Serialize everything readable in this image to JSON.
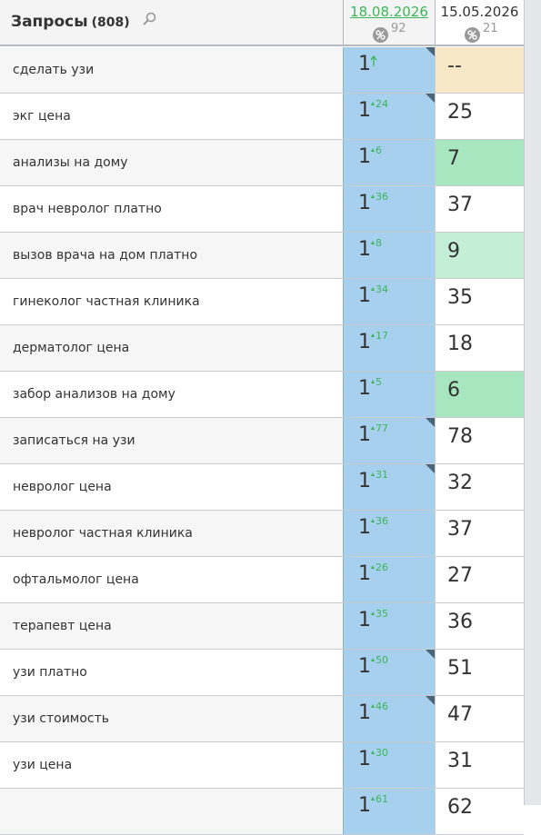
{
  "header": {
    "title": "Запросы",
    "count": "(808)",
    "columns": [
      {
        "date": "18.08.2026",
        "percent": "92",
        "link": true
      },
      {
        "date": "15.05.2026",
        "percent": "21",
        "link": false
      }
    ]
  },
  "table": {
    "rows": [
      {
        "query": "сделать узи",
        "pos1": "1",
        "new": true,
        "pos2": "--",
        "color": "#f7e9c8",
        "flag": true
      },
      {
        "query": "экг цена",
        "pos1": "1",
        "change": "24",
        "pos2": "25",
        "flag": true
      },
      {
        "query": "анализы на дому",
        "pos1": "1",
        "change": "6",
        "pos2": "7",
        "color": "#a8e6c0"
      },
      {
        "query": "врач невролог платно",
        "pos1": "1",
        "change": "36",
        "pos2": "37"
      },
      {
        "query": "вызов врача на дом платно",
        "pos1": "1",
        "change": "8",
        "pos2": "9",
        "color": "#c4efd6"
      },
      {
        "query": "гинеколог частная клиника",
        "pos1": "1",
        "change": "34",
        "pos2": "35"
      },
      {
        "query": "дерматолог цена",
        "pos1": "1",
        "change": "17",
        "pos2": "18"
      },
      {
        "query": "забор анализов на дому",
        "pos1": "1",
        "change": "5",
        "pos2": "6",
        "color": "#a8e6c0"
      },
      {
        "query": "записаться на узи",
        "pos1": "1",
        "change": "77",
        "pos2": "78",
        "flag": true
      },
      {
        "query": "невролог цена",
        "pos1": "1",
        "change": "31",
        "pos2": "32",
        "flag": true
      },
      {
        "query": "невролог частная клиника",
        "pos1": "1",
        "change": "36",
        "pos2": "37"
      },
      {
        "query": "офтальмолог цена",
        "pos1": "1",
        "change": "26",
        "pos2": "27"
      },
      {
        "query": "терапевт цена",
        "pos1": "1",
        "change": "35",
        "pos2": "36"
      },
      {
        "query": "узи платно",
        "pos1": "1",
        "change": "50",
        "pos2": "51",
        "flag": true
      },
      {
        "query": "узи стоимость",
        "pos1": "1",
        "change": "46",
        "pos2": "47",
        "flag": true
      },
      {
        "query": "узи цена",
        "pos1": "1",
        "change": "30",
        "pos2": "31"
      },
      {
        "pos1": "1",
        "change": "61",
        "pos2": "62"
      }
    ]
  }
}
